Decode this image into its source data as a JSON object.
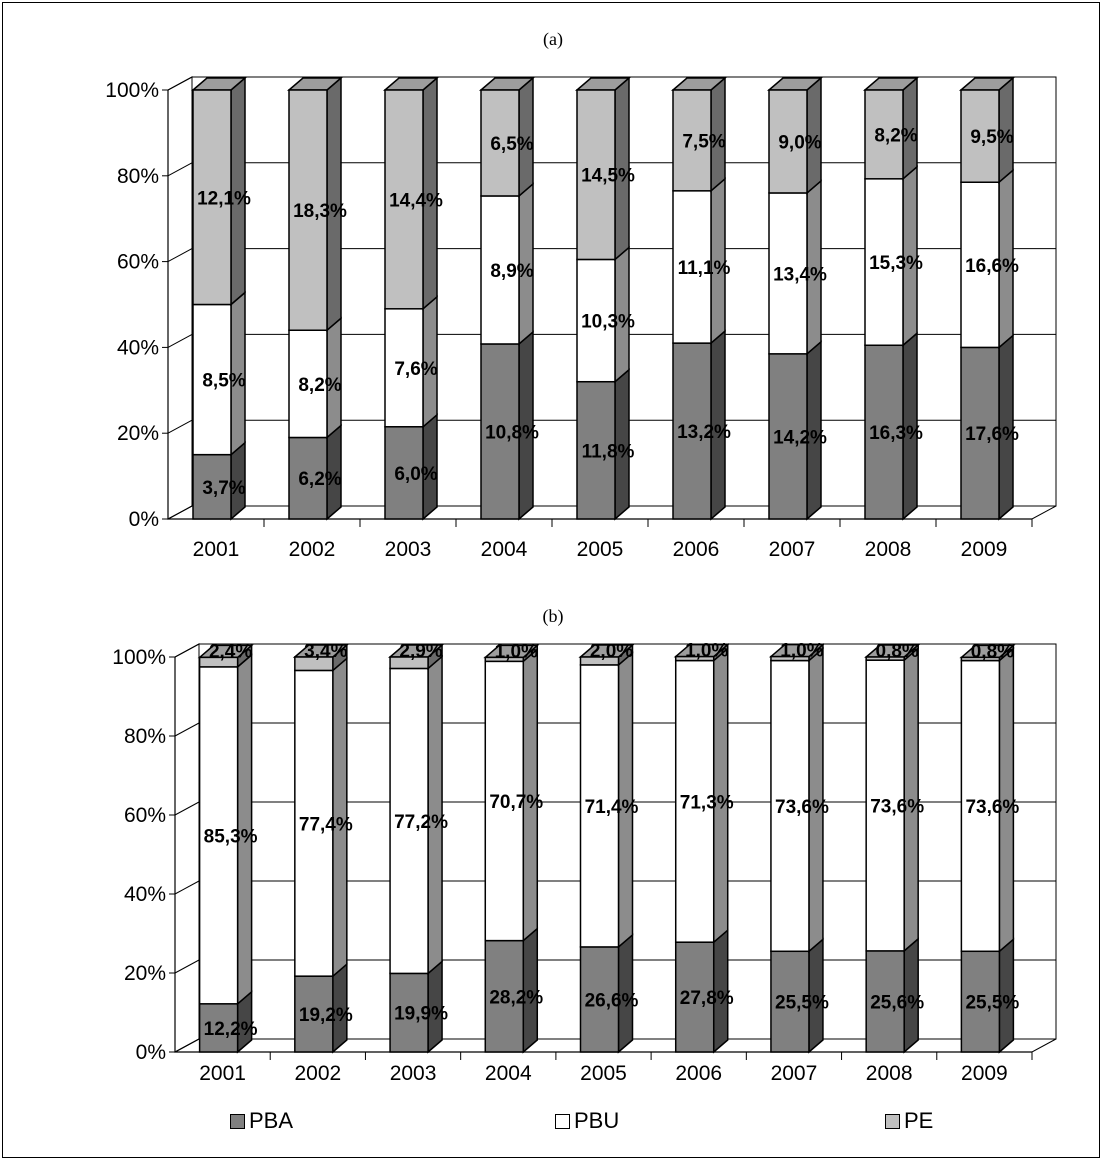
{
  "chart_data": [
    {
      "type": "bar",
      "stacked": true,
      "percent_stacked": true,
      "subtitle": "(a)",
      "categories": [
        "2001",
        "2002",
        "2003",
        "2004",
        "2005",
        "2006",
        "2007",
        "2008",
        "2009"
      ],
      "y_ticks": [
        "0%",
        "20%",
        "40%",
        "60%",
        "80%",
        "100%"
      ],
      "ylim": [
        0,
        100
      ],
      "grid": true,
      "series": [
        {
          "name": "PBA",
          "color": "#808080",
          "share_percent": [
            15.0,
            19.0,
            21.5,
            40.8,
            32.0,
            41.0,
            38.5,
            40.5,
            40.0
          ],
          "labels": [
            "3,7%",
            "6,2%",
            "6,0%",
            "10,8%",
            "11,8%",
            "13,2%",
            "14,2%",
            "16,3%",
            "17,6%"
          ]
        },
        {
          "name": "PBU",
          "color": "#ffffff",
          "share_percent": [
            35.0,
            25.0,
            27.5,
            34.5,
            28.5,
            35.5,
            37.5,
            38.8,
            38.5
          ],
          "labels": [
            "8,5%",
            "8,2%",
            "7,6%",
            "8,9%",
            "10,3%",
            "11,1%",
            "13,4%",
            "15,3%",
            "16,6%"
          ]
        },
        {
          "name": "PE",
          "color": "#c0c0c0",
          "share_percent": [
            50.0,
            56.0,
            51.0,
            24.7,
            39.5,
            23.5,
            24.0,
            20.7,
            21.5
          ],
          "labels": [
            "12,1%",
            "18,3%",
            "14,4%",
            "6,5%",
            "14,5%",
            "7,5%",
            "9,0%",
            "8,2%",
            "9,5%"
          ]
        }
      ]
    },
    {
      "type": "bar",
      "stacked": true,
      "percent_stacked": true,
      "subtitle": "(b)",
      "categories": [
        "2001",
        "2002",
        "2003",
        "2004",
        "2005",
        "2006",
        "2007",
        "2008",
        "2009"
      ],
      "y_ticks": [
        "0%",
        "20%",
        "40%",
        "60%",
        "80%",
        "100%"
      ],
      "ylim": [
        0,
        100
      ],
      "grid": true,
      "series": [
        {
          "name": "PBA",
          "color": "#808080",
          "share_percent": [
            12.2,
            19.2,
            19.9,
            28.2,
            26.6,
            27.8,
            25.5,
            25.6,
            25.5
          ],
          "labels": [
            "12,2%",
            "19,2%",
            "19,9%",
            "28,2%",
            "26,6%",
            "27,8%",
            "25,5%",
            "25,6%",
            "25,5%"
          ]
        },
        {
          "name": "PBU",
          "color": "#ffffff",
          "share_percent": [
            85.3,
            77.4,
            77.2,
            70.7,
            71.4,
            71.3,
            73.6,
            73.6,
            73.6
          ],
          "labels": [
            "85,3%",
            "77,4%",
            "77,2%",
            "70,7%",
            "71,4%",
            "71,3%",
            "73,6%",
            "73,6%",
            "73,6%"
          ]
        },
        {
          "name": "PE",
          "color": "#c0c0c0",
          "share_percent": [
            2.4,
            3.4,
            2.9,
            1.0,
            2.0,
            1.0,
            1.0,
            0.8,
            0.8
          ],
          "labels": [
            "2,4%",
            "3,4%",
            "2,9%",
            "1,0%",
            "2,0%",
            "1,0%",
            "1,0%",
            "0,8%",
            "0,8%"
          ]
        }
      ]
    }
  ],
  "legend": [
    {
      "label": "PBA",
      "color": "#808080"
    },
    {
      "label": "PBU",
      "color": "#ffffff"
    },
    {
      "label": "PE",
      "color": "#c0c0c0"
    }
  ]
}
